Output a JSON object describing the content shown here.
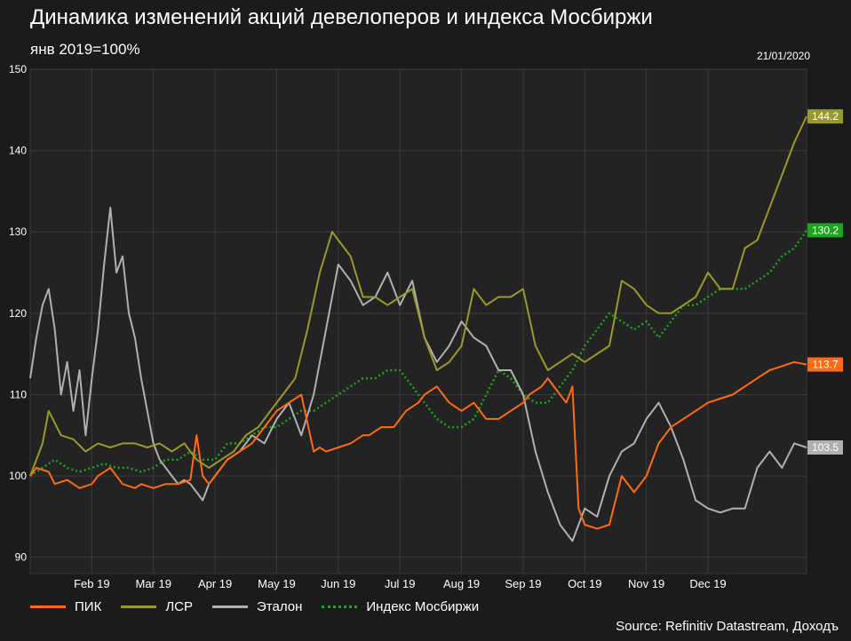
{
  "title": "Динамика изменений акций девелоперов и индекса Мосбиржи",
  "subtitle": "янв 2019=100%",
  "date": "21/01/2020",
  "source": "Source: Refinitiv Datastream, Доходъ",
  "chart_data": {
    "type": "line",
    "ylim": [
      88,
      150
    ],
    "yticks": [
      90,
      100,
      110,
      120,
      130,
      140,
      150
    ],
    "xlim": [
      0,
      12.6
    ],
    "xtick_labels": [
      "Feb 19",
      "Mar 19",
      "Apr 19",
      "May 19",
      "Jun 19",
      "Jul 19",
      "Aug 19",
      "Sep 19",
      "Oct 19",
      "Nov 19",
      "Dec 19"
    ],
    "xtick_positions": [
      1.0,
      2.0,
      3.0,
      4.0,
      5.0,
      6.0,
      7.0,
      8.0,
      9.0,
      10.0,
      11.0
    ],
    "grid": true,
    "legend": "bottom",
    "series": [
      {
        "name": "ПИК",
        "color": "#ff6a13",
        "style": "solid",
        "end_label": "113.7",
        "x": [
          0,
          0.1,
          0.3,
          0.4,
          0.6,
          0.8,
          1.0,
          1.1,
          1.3,
          1.5,
          1.7,
          1.8,
          2.0,
          2.2,
          2.4,
          2.6,
          2.7,
          2.8,
          2.9,
          3.0,
          3.2,
          3.4,
          3.6,
          3.8,
          4.0,
          4.2,
          4.4,
          4.6,
          4.7,
          4.8,
          5.0,
          5.2,
          5.4,
          5.5,
          5.7,
          5.9,
          6.1,
          6.3,
          6.4,
          6.6,
          6.8,
          7.0,
          7.2,
          7.4,
          7.6,
          7.8,
          8.0,
          8.1,
          8.3,
          8.4,
          8.6,
          8.7,
          8.8,
          8.9,
          9.0,
          9.2,
          9.4,
          9.6,
          9.8,
          10.0,
          10.2,
          10.4,
          10.6,
          10.8,
          11.0,
          11.2,
          11.4,
          11.6,
          11.8,
          12.0,
          12.2,
          12.4,
          12.6
        ],
        "values": [
          100,
          101,
          100.5,
          99,
          99.5,
          98.5,
          99,
          100,
          101,
          99,
          98.5,
          99,
          98.5,
          99,
          99,
          99.5,
          105,
          100,
          99,
          100,
          102,
          103,
          104,
          106,
          108,
          109,
          110,
          103,
          103.5,
          103,
          103.5,
          104,
          105,
          105,
          106,
          106,
          108,
          109,
          110,
          111,
          109,
          108,
          109,
          107,
          107,
          108,
          109,
          110,
          111,
          112,
          110,
          109,
          111,
          96,
          94,
          93.5,
          94,
          100,
          98,
          100,
          104,
          106,
          107,
          108,
          109,
          109.5,
          110,
          111,
          112,
          113,
          113.5,
          114,
          113.7
        ]
      },
      {
        "name": "ЛСР",
        "color": "#9a9a2a",
        "style": "solid",
        "end_label": "144.2",
        "x": [
          0,
          0.2,
          0.3,
          0.5,
          0.7,
          0.9,
          1.1,
          1.3,
          1.5,
          1.7,
          1.9,
          2.1,
          2.3,
          2.5,
          2.7,
          2.9,
          3.1,
          3.3,
          3.5,
          3.7,
          3.9,
          4.1,
          4.3,
          4.5,
          4.7,
          4.9,
          5.0,
          5.2,
          5.4,
          5.6,
          5.8,
          6.0,
          6.2,
          6.4,
          6.6,
          6.8,
          7.0,
          7.2,
          7.4,
          7.6,
          7.8,
          8.0,
          8.2,
          8.4,
          8.6,
          8.8,
          9.0,
          9.2,
          9.4,
          9.6,
          9.8,
          10.0,
          10.2,
          10.4,
          10.6,
          10.8,
          11.0,
          11.2,
          11.4,
          11.6,
          11.8,
          12.0,
          12.2,
          12.4,
          12.6
        ],
        "values": [
          100,
          104,
          108,
          105,
          104.5,
          103,
          104,
          103.5,
          104,
          104,
          103.5,
          104,
          103,
          104,
          102,
          101,
          102,
          103,
          105,
          106,
          108,
          110,
          112,
          118,
          125,
          130,
          129,
          127,
          122,
          122,
          121,
          122,
          123,
          117,
          113,
          114,
          116,
          123,
          121,
          122,
          122,
          123,
          116,
          113,
          114,
          115,
          114,
          115,
          116,
          124,
          123,
          121,
          120,
          120,
          121,
          122,
          125,
          123,
          123,
          128,
          129,
          133,
          137,
          141,
          144.2
        ]
      },
      {
        "name": "Эталон",
        "color": "#b0b0b0",
        "style": "solid",
        "end_label": "103.5",
        "x": [
          0,
          0.1,
          0.2,
          0.3,
          0.4,
          0.5,
          0.6,
          0.7,
          0.8,
          0.9,
          1.0,
          1.1,
          1.2,
          1.3,
          1.4,
          1.5,
          1.6,
          1.7,
          1.8,
          1.9,
          2.0,
          2.1,
          2.2,
          2.3,
          2.4,
          2.5,
          2.6,
          2.7,
          2.8,
          2.9,
          3.0,
          3.2,
          3.4,
          3.6,
          3.8,
          4.0,
          4.2,
          4.4,
          4.6,
          4.8,
          5.0,
          5.2,
          5.4,
          5.6,
          5.8,
          6.0,
          6.2,
          6.4,
          6.6,
          6.8,
          7.0,
          7.2,
          7.4,
          7.6,
          7.8,
          8.0,
          8.2,
          8.4,
          8.6,
          8.8,
          9.0,
          9.2,
          9.4,
          9.6,
          9.8,
          10.0,
          10.2,
          10.4,
          10.6,
          10.8,
          11.0,
          11.2,
          11.4,
          11.6,
          11.8,
          12.0,
          12.2,
          12.4,
          12.6
        ],
        "values": [
          112,
          117,
          121,
          123,
          118,
          110,
          114,
          108,
          113,
          105,
          112,
          118,
          126,
          133,
          125,
          127,
          120,
          117,
          112,
          108,
          104,
          102,
          101,
          100,
          99,
          99.5,
          99,
          98,
          97,
          99,
          100,
          102,
          103,
          105,
          104,
          107,
          109,
          105,
          110,
          118,
          126,
          124,
          121,
          122,
          125,
          121,
          124,
          117,
          114,
          116,
          119,
          117,
          116,
          113,
          113,
          110,
          103,
          98,
          94,
          92,
          96,
          95,
          100,
          103,
          104,
          107,
          109,
          106,
          102,
          97,
          96,
          95.5,
          96,
          96,
          101,
          103,
          101,
          104,
          103.5
        ]
      },
      {
        "name": "Индекс Мосбиржи",
        "color": "#1ea51e",
        "style": "dotted",
        "end_label": "130.2",
        "x": [
          0,
          0.2,
          0.4,
          0.6,
          0.8,
          1.0,
          1.2,
          1.4,
          1.6,
          1.8,
          2.0,
          2.2,
          2.4,
          2.6,
          2.8,
          3.0,
          3.2,
          3.4,
          3.6,
          3.8,
          4.0,
          4.2,
          4.4,
          4.6,
          4.8,
          5.0,
          5.2,
          5.4,
          5.6,
          5.8,
          6.0,
          6.2,
          6.4,
          6.6,
          6.8,
          7.0,
          7.2,
          7.4,
          7.6,
          7.8,
          8.0,
          8.2,
          8.4,
          8.6,
          8.8,
          9.0,
          9.2,
          9.4,
          9.6,
          9.8,
          10.0,
          10.2,
          10.4,
          10.6,
          10.8,
          11.0,
          11.2,
          11.4,
          11.6,
          11.8,
          12.0,
          12.2,
          12.4,
          12.6
        ],
        "values": [
          100,
          101,
          102,
          101,
          100.5,
          101,
          101.5,
          101,
          101,
          100.5,
          101,
          102,
          102,
          103,
          102,
          102,
          104,
          104,
          105,
          106,
          106,
          107,
          108,
          108,
          109,
          110,
          111,
          112,
          112,
          113,
          113,
          111,
          109,
          107,
          106,
          106,
          107,
          110,
          113,
          112,
          110,
          109,
          109,
          111,
          113,
          116,
          118,
          120,
          119,
          118,
          119,
          117,
          119,
          121,
          121,
          122,
          123,
          123,
          123,
          124,
          125,
          127,
          128,
          130.2
        ]
      }
    ]
  }
}
